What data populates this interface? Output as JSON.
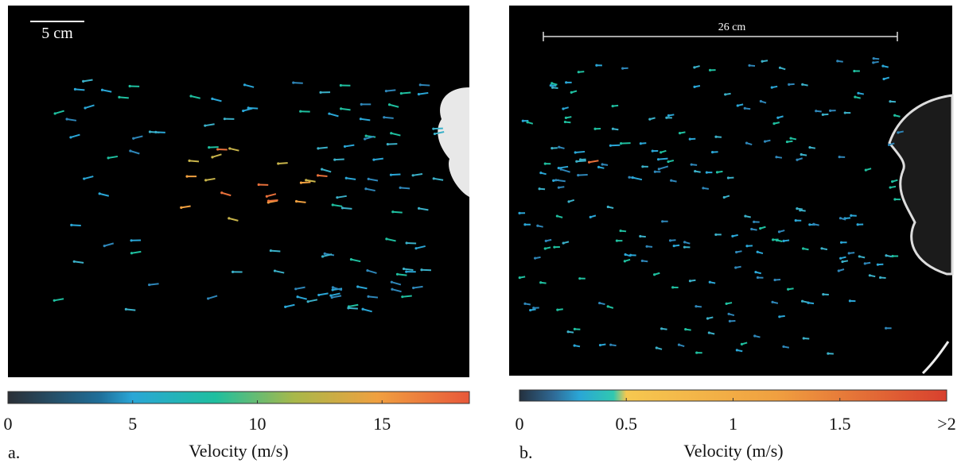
{
  "panels": [
    {
      "label": "a.",
      "scale_bar": "5 cm",
      "colorbar": {
        "title": "Velocity (m/s)",
        "lim": [
          0,
          18.5
        ],
        "ticks": [
          0,
          5,
          10,
          15
        ]
      }
    },
    {
      "label": "b.",
      "scale_bar": "26 cm",
      "colorbar": {
        "title": "Velocity (m/s)",
        "lim": [
          0,
          2
        ],
        "ticks": [
          0,
          0.5,
          1,
          1.5,
          {
            "value": 2,
            "label": ">2"
          }
        ]
      }
    }
  ]
}
